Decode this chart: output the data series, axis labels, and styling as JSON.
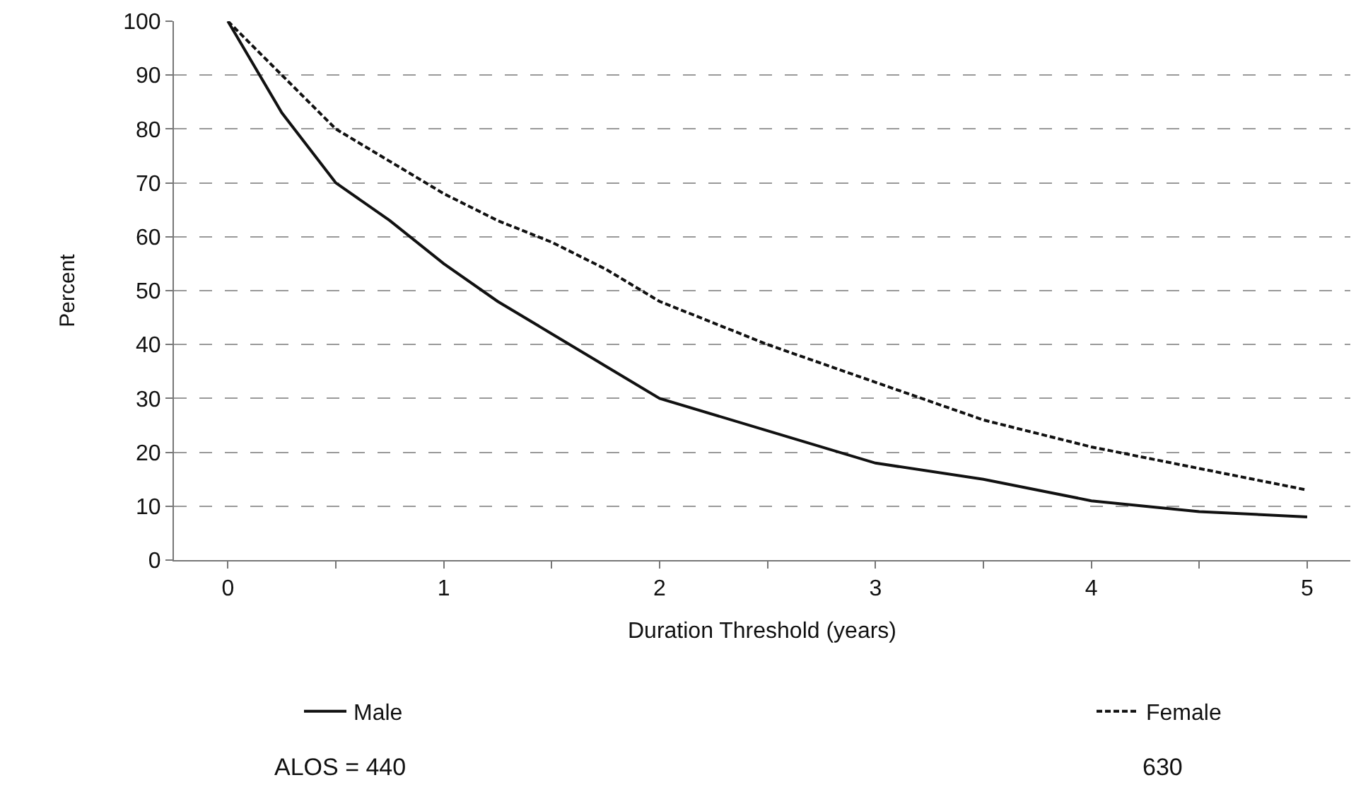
{
  "chart_data": {
    "type": "line",
    "xlabel": "Duration Threshold (years)",
    "ylabel": "Percent",
    "x": [
      0,
      0.25,
      0.5,
      0.75,
      1,
      1.25,
      1.5,
      1.75,
      2,
      2.5,
      3,
      3.5,
      4,
      4.5,
      5
    ],
    "series": [
      {
        "name": "Male",
        "color": "#111111",
        "line_style": "solid",
        "values": [
          100,
          83,
          70,
          63,
          55,
          48,
          42,
          36,
          30,
          24,
          18,
          15,
          11,
          9,
          8
        ]
      },
      {
        "name": "Female",
        "color": "#111111",
        "line_style": "dashed",
        "values": [
          100,
          90,
          80,
          74,
          68,
          63,
          59,
          54,
          48,
          40,
          33,
          26,
          21,
          17,
          13
        ]
      }
    ],
    "xlim": [
      -0.25,
      5.2
    ],
    "ylim": [
      0,
      100
    ],
    "xticks": [
      0,
      {
        "value": 0.5,
        "label": null
      },
      1,
      {
        "value": 1.5,
        "label": null
      },
      2,
      {
        "value": 2.5,
        "label": null
      },
      3,
      {
        "value": 3.5,
        "label": null
      },
      4,
      {
        "value": 4.5,
        "label": null
      },
      5
    ],
    "yticks": [
      0,
      10,
      20,
      30,
      40,
      50,
      60,
      70,
      80,
      90,
      100
    ],
    "grid": "y",
    "legend": "bottom",
    "marker": "none",
    "annotations": [
      "ALOS = 440",
      "630"
    ]
  }
}
